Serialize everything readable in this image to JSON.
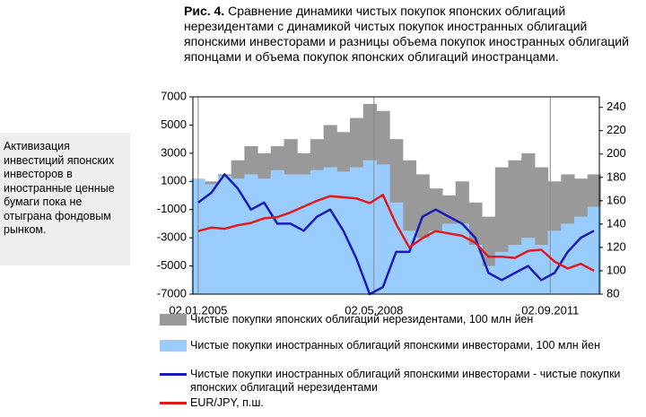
{
  "note": "Активизация инвестиций японских инвесторов в иностранные ценные бумаги пока не отыграна фондовым рынком.",
  "chart_data": {
    "type": "combo",
    "figure_label": "Рис. 4.",
    "title": "Сравнение динамики чистых покупок японских облигаций нерезидентами с динамикой чистых покупок иностранных облигаций японскими инвесторами и разницы объема покупок иностранных облигаций японцами и объема покупок японских облигаций иностранцами.",
    "x": [
      2005.0,
      2005.25,
      2005.5,
      2005.75,
      2006.0,
      2006.25,
      2006.5,
      2006.75,
      2007.0,
      2007.25,
      2007.5,
      2007.75,
      2008.0,
      2008.25,
      2008.5,
      2008.75,
      2009.0,
      2009.25,
      2009.5,
      2009.75,
      2010.0,
      2010.25,
      2010.5,
      2010.75,
      2011.0,
      2011.25,
      2011.5,
      2011.75,
      2012.0,
      2012.25,
      2012.5
    ],
    "xlim": [
      2004.9,
      2012.6
    ],
    "xticks": [
      {
        "value": 2005.0,
        "label": "02.01.2005"
      },
      {
        "value": 2008.33,
        "label": "02.05.2008"
      },
      {
        "value": 2011.67,
        "label": "02.09.2011"
      }
    ],
    "ylim": [
      -7000,
      7000
    ],
    "yticks": [
      -7000,
      -5000,
      -3000,
      -1000,
      1000,
      3000,
      5000,
      7000
    ],
    "y2lim": [
      80,
      249
    ],
    "y2ticks": [
      80,
      100,
      120,
      140,
      160,
      180,
      200,
      220,
      240
    ],
    "series": [
      {
        "name": "Чистые покупки японских облигаций нерезидентами, 100 млн йен",
        "kind": "area",
        "color": "#999999",
        "values": [
          800,
          1000,
          1500,
          2500,
          3500,
          3000,
          3500,
          4000,
          3000,
          4000,
          5000,
          4500,
          5500,
          6500,
          6000,
          4000,
          2500,
          1500,
          500,
          0,
          1000,
          -500,
          -1500,
          2000,
          2500,
          3000,
          2000,
          1000,
          1500,
          1200,
          1500
        ]
      },
      {
        "name": "Чистые покупки иностранных облигаций японскими инвесторами, 100 млн йен",
        "kind": "area",
        "color": "#99ccff",
        "values": [
          1200,
          800,
          1400,
          1200,
          1500,
          1200,
          1800,
          1500,
          1500,
          1800,
          2000,
          1700,
          2000,
          2500,
          2200,
          -500,
          -2500,
          -3000,
          -2500,
          -2000,
          -2000,
          -3500,
          -5000,
          -4000,
          -3500,
          -3000,
          -3500,
          -2500,
          -2000,
          -1500,
          -800
        ]
      },
      {
        "name": "Чистые покупки иностранных облигаций японскими инвесторами - чистые покупки японских облигаций нерезидентами",
        "kind": "line",
        "color": "#1a1ab8",
        "values": [
          -500,
          200,
          1500,
          500,
          -1000,
          -500,
          -2000,
          -2000,
          -2500,
          -1500,
          -1000,
          -2500,
          -4500,
          -7000,
          -6500,
          -4000,
          -4000,
          -1500,
          -1000,
          -1500,
          -2000,
          -3000,
          -5500,
          -6000,
          -5500,
          -5000,
          -6000,
          -5500,
          -4000,
          -3000,
          -2500
        ]
      },
      {
        "name": "EUR/JPY, п.ш.",
        "kind": "line",
        "axis": "y2",
        "color": "#e31a1c",
        "values": [
          134,
          137,
          136,
          139,
          141,
          145,
          146,
          150,
          155,
          160,
          164,
          163,
          162,
          158,
          165,
          140,
          120,
          128,
          134,
          132,
          130,
          124,
          112,
          112,
          111,
          117,
          118,
          108,
          102,
          106,
          100
        ]
      }
    ]
  }
}
